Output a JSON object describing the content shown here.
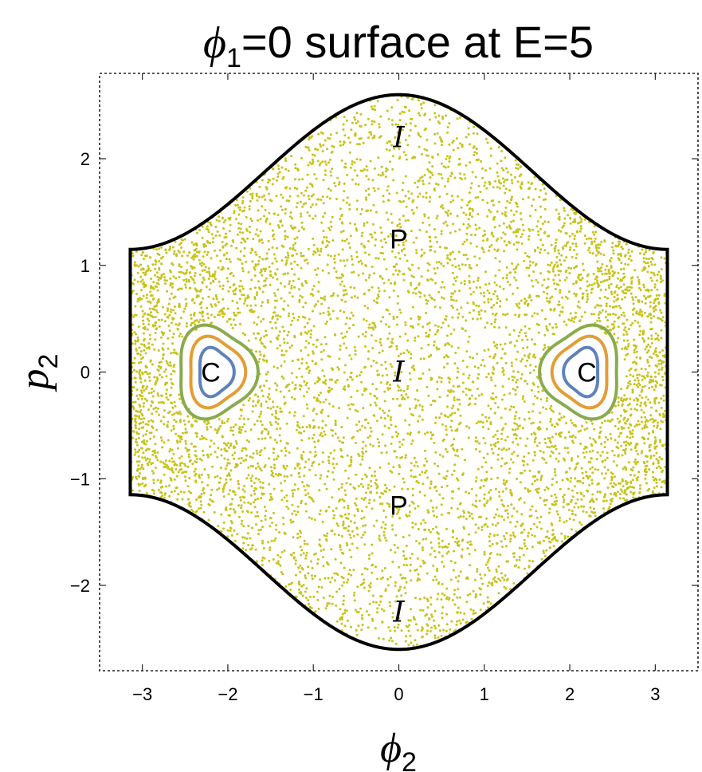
{
  "chart_data": {
    "type": "scatter",
    "title": {
      "symbol": "ϕ",
      "subscript": "1",
      "rest": "=0 surface at E=5"
    },
    "xlabel": {
      "symbol": "ϕ",
      "subscript": "2"
    },
    "ylabel": {
      "symbol": "p",
      "subscript": "2"
    },
    "xlim": [
      -3.5,
      3.5
    ],
    "ylim": [
      -2.8,
      2.8
    ],
    "x_ticks": [
      -3,
      -2,
      -1,
      0,
      1,
      2,
      3
    ],
    "x_tick_labels": [
      "−3",
      "−2",
      "−1",
      "0",
      "1",
      "2",
      "3"
    ],
    "y_ticks": [
      -2,
      -1,
      0,
      1,
      2
    ],
    "y_tick_labels": [
      "−2",
      "−1",
      "0",
      "1",
      "2"
    ],
    "frame_style": "dashed",
    "grid": false,
    "boundary": {
      "description": "energy boundary curve",
      "color": "#000000",
      "x_extent": [
        -3.1416,
        3.1416
      ],
      "p_max": 2.6,
      "p_at_edge": 1.15
    },
    "chaotic_sea": {
      "color": "#c8c31a",
      "point_count": 6500
    },
    "islands": [
      {
        "center": [
          -2.15,
          0
        ],
        "curves": [
          {
            "color": "#8aab4c",
            "rx": 0.45,
            "ry": 0.42
          },
          {
            "color": "#e39d35",
            "rx": 0.32,
            "ry": 0.32
          },
          {
            "color": "#5f82bb",
            "rx": 0.2,
            "ry": 0.22
          }
        ]
      },
      {
        "center": [
          2.15,
          0
        ],
        "curves": [
          {
            "color": "#8aab4c",
            "rx": 0.45,
            "ry": 0.42
          },
          {
            "color": "#e39d35",
            "rx": 0.32,
            "ry": 0.32
          },
          {
            "color": "#5f82bb",
            "rx": 0.2,
            "ry": 0.22
          }
        ]
      }
    ],
    "annotations": [
      {
        "text": "I",
        "style": "script",
        "x": 0,
        "y": 2.2
      },
      {
        "text": "P",
        "style": "plain",
        "x": 0,
        "y": 1.25
      },
      {
        "text": "I",
        "style": "script",
        "x": 0,
        "y": 0
      },
      {
        "text": "P",
        "style": "plain",
        "x": 0,
        "y": -1.25
      },
      {
        "text": "I",
        "style": "script",
        "x": 0,
        "y": -2.25
      },
      {
        "text": "C",
        "style": "plain",
        "x": -2.2,
        "y": 0
      },
      {
        "text": "C",
        "style": "plain",
        "x": 2.2,
        "y": 0
      }
    ]
  }
}
